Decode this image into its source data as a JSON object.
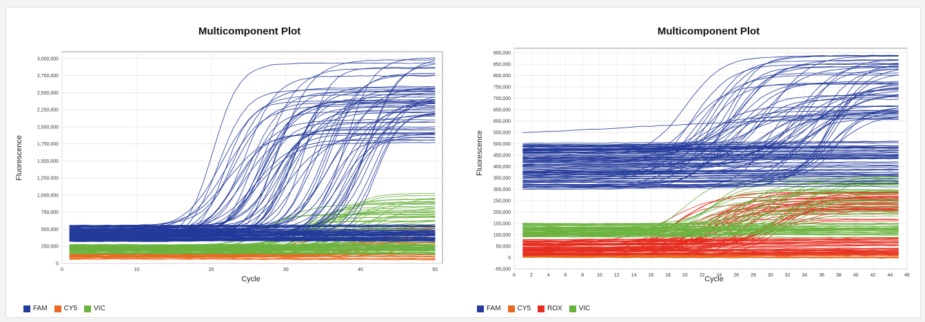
{
  "chart_data": [
    {
      "type": "line",
      "title": "Multicomponent Plot",
      "xlabel": "Cycle",
      "ylabel": "Fluorescence",
      "xlim": [
        0,
        51
      ],
      "ylim": [
        0,
        3100000
      ],
      "xticks": [
        0,
        10,
        20,
        30,
        40,
        50
      ],
      "xtick_labels": [
        "0",
        "10",
        "20",
        "30",
        "40",
        "50"
      ],
      "yticks": [
        0,
        250000,
        500000,
        750000,
        1000000,
        1250000,
        1500000,
        1750000,
        2000000,
        2250000,
        2500000,
        2750000,
        3000000
      ],
      "ytick_labels": [
        "0",
        "250,000",
        "500,000",
        "750,000",
        "1,000,000",
        "1,250,000",
        "1,500,000",
        "1,750,000",
        "2,000,000",
        "2,250,000",
        "2,500,000",
        "2,750,000",
        "3,000,000"
      ],
      "grid": true,
      "legend_position": "bottom-left",
      "series": [
        {
          "name": "FAM",
          "color": "#233a9a",
          "baseline": [
            320000,
            560000
          ],
          "amplified_count": 62,
          "plateau": [
            1750000,
            3050000
          ],
          "ct": [
            20,
            42
          ],
          "sample_values_cycle_50": [
            3050000,
            2950000,
            2900000,
            2600000,
            2450000,
            2350000,
            2050000,
            1750000
          ]
        },
        {
          "name": "CY5",
          "color": "#e8691f",
          "baseline": [
            60000,
            150000
          ],
          "amplified_count": 18,
          "plateau": [
            200000,
            560000
          ],
          "ct": [
            28,
            45
          ]
        },
        {
          "name": "VIC",
          "color": "#6cb33e",
          "baseline": [
            140000,
            280000
          ],
          "amplified_count": 40,
          "plateau": [
            300000,
            1060000
          ],
          "ct": [
            24,
            42
          ]
        }
      ]
    },
    {
      "type": "line",
      "title": "Multicomponent Plot",
      "xlabel": "Cycle",
      "ylabel": "Fluorescence",
      "xlim": [
        0,
        46
      ],
      "ylim": [
        -50000,
        920000
      ],
      "xticks": [
        0,
        2,
        4,
        6,
        8,
        10,
        12,
        14,
        16,
        18,
        20,
        22,
        24,
        26,
        28,
        30,
        32,
        34,
        36,
        38,
        40,
        42,
        44,
        46
      ],
      "xtick_labels": [
        "0",
        "2",
        "4",
        "6",
        "8",
        "10",
        "12",
        "14",
        "16",
        "18",
        "20",
        "22",
        "24",
        "26",
        "28",
        "30",
        "32",
        "34",
        "36",
        "38",
        "40",
        "42",
        "44",
        "46"
      ],
      "yticks": [
        -50000,
        0,
        50000,
        100000,
        150000,
        200000,
        250000,
        300000,
        350000,
        400000,
        450000,
        500000,
        550000,
        600000,
        650000,
        700000,
        750000,
        800000,
        850000,
        900000
      ],
      "ytick_labels": [
        "-50,000",
        "0",
        "50,000",
        "100,000",
        "150,000",
        "200,000",
        "250,000",
        "300,000",
        "350,000",
        "400,000",
        "450,000",
        "500,000",
        "550,000",
        "600,000",
        "650,000",
        "700,000",
        "750,000",
        "800,000",
        "850,000",
        "900,000"
      ],
      "grid": true,
      "legend_position": "bottom-left",
      "series": [
        {
          "name": "FAM",
          "color": "#233a9a",
          "baseline": [
            300000,
            510000
          ],
          "amplified_count": 55,
          "plateau": [
            600000,
            890000
          ],
          "ct": [
            20,
            38
          ],
          "outlier_start": 540000
        },
        {
          "name": "CY5",
          "color": "#e8691f",
          "baseline": [
            0,
            10000
          ],
          "amplified_count": 0
        },
        {
          "name": "ROX",
          "color": "#e62d1f",
          "baseline": [
            10000,
            80000
          ],
          "amplified_count": 40,
          "plateau": [
            160000,
            290000
          ],
          "ct": [
            18,
            32
          ]
        },
        {
          "name": "VIC",
          "color": "#6cb33e",
          "baseline": [
            90000,
            150000
          ],
          "amplified_count": 30,
          "plateau": [
            180000,
            370000
          ],
          "ct": [
            19,
            36
          ]
        }
      ]
    }
  ]
}
